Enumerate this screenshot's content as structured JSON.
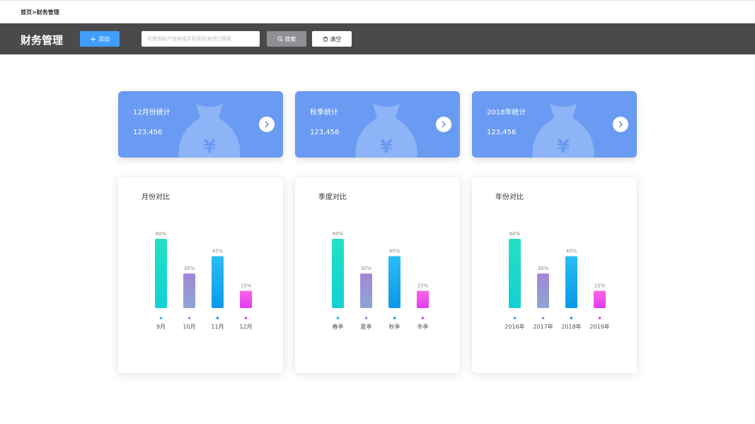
{
  "breadcrumb": "首页>财务管理",
  "header": {
    "title": "财务管理",
    "add_label": "添加",
    "search_placeholder": "可使用账户名称或手机号码来进行搜索",
    "search_label": "搜索",
    "clear_label": "清空"
  },
  "stat_cards": [
    {
      "title": "12月份统计",
      "value": "123,456"
    },
    {
      "title": "秋季统计",
      "value": "123,456"
    },
    {
      "title": "2018年统计",
      "value": "123,456"
    }
  ],
  "colors": {
    "toolbar": "#4a4a4a",
    "accent": "#409eff",
    "card": "#6a9bf2",
    "bar_gradients": [
      [
        "#23e0c4",
        "#14d0d5"
      ],
      [
        "#a386d8",
        "#8ea6d4"
      ],
      [
        "#2bbdf5",
        "#0a98e8"
      ],
      [
        "#f667e5",
        "#e43bf0"
      ]
    ],
    "dot_colors": [
      "#19c3e3",
      "#9a8ad8",
      "#1896e6",
      "#ee3cde"
    ]
  },
  "chart_data": [
    {
      "type": "bar",
      "title": "月份对比",
      "categories": [
        "9月",
        "10月",
        "11月",
        "12月"
      ],
      "values": [
        60,
        30,
        45,
        15
      ],
      "labels": [
        "60%",
        "30%",
        "45%",
        "15%"
      ],
      "ylim": [
        0,
        60
      ]
    },
    {
      "type": "bar",
      "title": "季度对比",
      "categories": [
        "春季",
        "夏季",
        "秋季",
        "冬季"
      ],
      "values": [
        60,
        30,
        45,
        15
      ],
      "labels": [
        "60%",
        "30%",
        "45%",
        "15%"
      ],
      "ylim": [
        0,
        60
      ]
    },
    {
      "type": "bar",
      "title": "年份对比",
      "categories": [
        "2016年",
        "2017年",
        "2018年",
        "2019年"
      ],
      "values": [
        60,
        30,
        45,
        15
      ],
      "labels": [
        "60%",
        "30%",
        "45%",
        "15%"
      ],
      "ylim": [
        0,
        60
      ]
    }
  ]
}
